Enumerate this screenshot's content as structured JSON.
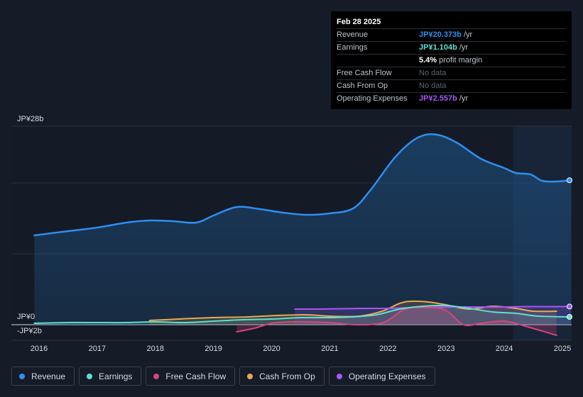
{
  "tooltip": {
    "date": "Feb 28 2025",
    "rows": [
      {
        "label": "Revenue",
        "value": "JP¥20.373b",
        "unit": "/yr",
        "color": "#2e8ff0"
      },
      {
        "label": "Earnings",
        "value": "JP¥1.104b",
        "unit": "/yr",
        "color": "#5ee0d0"
      },
      {
        "label": "",
        "value": "5.4%",
        "unit": "profit margin",
        "color": "#ffffff"
      },
      {
        "label": "Free Cash Flow",
        "value": "No data",
        "unit": "",
        "color": "#5d646e"
      },
      {
        "label": "Cash From Op",
        "value": "No data",
        "unit": "",
        "color": "#5d646e"
      },
      {
        "label": "Operating Expenses",
        "value": "JP¥2.557b",
        "unit": "/yr",
        "color": "#a855f7"
      }
    ]
  },
  "legend": [
    {
      "label": "Revenue",
      "color": "#2e8ff0"
    },
    {
      "label": "Earnings",
      "color": "#5ee0d0"
    },
    {
      "label": "Free Cash Flow",
      "color": "#d6457f"
    },
    {
      "label": "Cash From Op",
      "color": "#e8a94f"
    },
    {
      "label": "Operating Expenses",
      "color": "#a855f7"
    }
  ],
  "chart_data": {
    "type": "area",
    "title": "",
    "xlabel": "",
    "ylabel": "",
    "y_tick_labels": [
      {
        "label": "JP¥28b",
        "value": 28
      },
      {
        "label": "JP¥0",
        "value": 0
      },
      {
        "label": "-JP¥2b",
        "value": -2
      }
    ],
    "ylim": [
      -2,
      28
    ],
    "xlim": [
      2015.8,
      2025.15
    ],
    "x_ticks": [
      2016,
      2017,
      2018,
      2019,
      2020,
      2021,
      2022,
      2023,
      2024,
      2025
    ],
    "forecast_start": 2024.15,
    "series": [
      {
        "name": "Revenue",
        "color": "#2e8ff0",
        "fill": true,
        "x": [
          2015.92,
          2016.5,
          2017.0,
          2017.5,
          2017.9,
          2018.3,
          2018.7,
          2019.0,
          2019.4,
          2019.8,
          2020.2,
          2020.6,
          2021.0,
          2021.4,
          2021.7,
          2022.1,
          2022.4,
          2022.65,
          2022.9,
          2023.2,
          2023.6,
          2024.0,
          2024.2,
          2024.45,
          2024.65,
          2024.9,
          2025.15
        ],
        "y": [
          12.6,
          13.2,
          13.7,
          14.4,
          14.7,
          14.6,
          14.4,
          15.4,
          16.6,
          16.3,
          15.8,
          15.5,
          15.7,
          16.4,
          19.0,
          23.4,
          25.8,
          26.8,
          26.7,
          25.6,
          23.4,
          22.1,
          21.4,
          21.2,
          20.3,
          20.2,
          20.373
        ]
      },
      {
        "name": "Earnings",
        "color": "#5ee0d0",
        "fill": true,
        "x": [
          2015.92,
          2016.5,
          2017.0,
          2017.5,
          2018.0,
          2018.5,
          2019.0,
          2019.5,
          2020.0,
          2020.5,
          2021.0,
          2021.4,
          2021.8,
          2022.2,
          2022.6,
          2023.0,
          2023.4,
          2023.8,
          2024.2,
          2024.6,
          2025.15
        ],
        "y": [
          0.2,
          0.3,
          0.3,
          0.3,
          0.4,
          0.3,
          0.5,
          0.7,
          0.8,
          1.0,
          1.0,
          1.1,
          1.4,
          2.2,
          2.6,
          2.7,
          2.3,
          1.8,
          1.6,
          1.2,
          1.104
        ]
      },
      {
        "name": "Free Cash Flow",
        "color": "#d6457f",
        "fill": true,
        "x": [
          2019.4,
          2019.7,
          2020.0,
          2020.3,
          2020.6,
          2021.0,
          2021.4,
          2021.8,
          2022.0,
          2022.3,
          2022.7,
          2023.0,
          2023.3,
          2023.6,
          2024.0,
          2024.4,
          2024.9
        ],
        "y": [
          -1.0,
          -0.5,
          0.2,
          0.4,
          0.4,
          0.3,
          0.0,
          0.1,
          0.6,
          2.2,
          2.4,
          2.0,
          0.0,
          0.2,
          0.5,
          -0.3,
          -1.5
        ]
      },
      {
        "name": "Cash From Op",
        "color": "#e8a94f",
        "fill": true,
        "x": [
          2017.9,
          2018.4,
          2019.0,
          2019.6,
          2020.1,
          2020.6,
          2021.0,
          2021.5,
          2021.9,
          2022.2,
          2022.4,
          2022.7,
          2023.0,
          2023.4,
          2023.8,
          2024.2,
          2024.5,
          2024.9
        ],
        "y": [
          0.6,
          0.8,
          1.0,
          1.1,
          1.3,
          1.4,
          1.2,
          1.2,
          1.9,
          3.0,
          3.3,
          3.2,
          2.8,
          2.2,
          2.6,
          2.3,
          1.9,
          1.9
        ]
      },
      {
        "name": "Operating Expenses",
        "color": "#a855f7",
        "fill": true,
        "x": [
          2020.4,
          2020.8,
          2021.2,
          2021.6,
          2022.0,
          2022.4,
          2022.8,
          2023.2,
          2023.6,
          2024.0,
          2024.4,
          2024.8,
          2025.15
        ],
        "y": [
          2.2,
          2.2,
          2.25,
          2.3,
          2.3,
          2.4,
          2.45,
          2.5,
          2.5,
          2.5,
          2.55,
          2.55,
          2.557
        ]
      }
    ]
  }
}
